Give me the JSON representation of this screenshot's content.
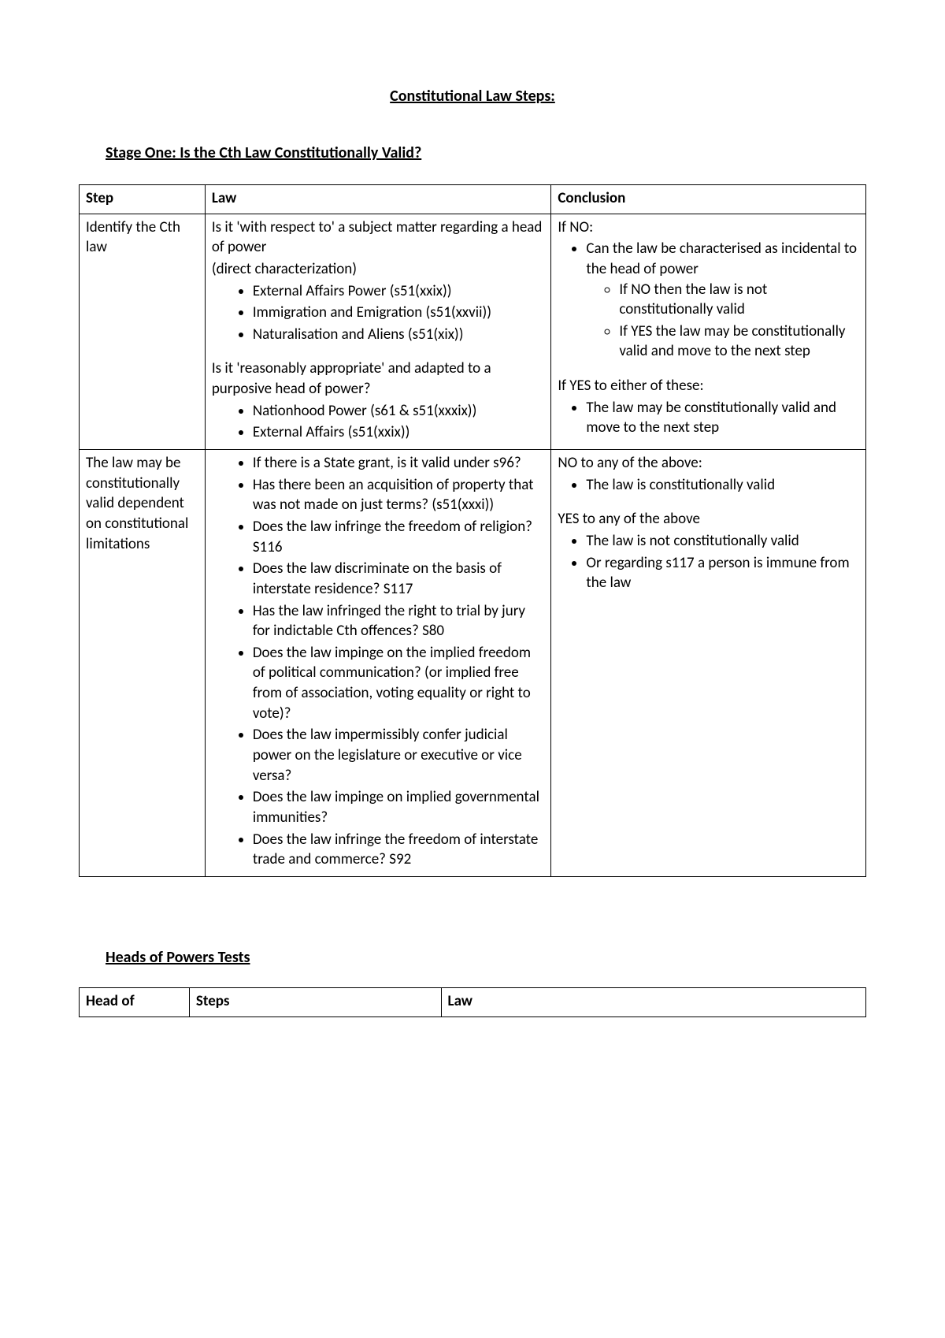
{
  "title": "Constitutional Law Steps:",
  "stage_one_title": "Stage One: Is the Cth Law Constitutionally Valid?",
  "table1": {
    "headers": {
      "step": "Step",
      "law": "Law",
      "conclusion": "Conclusion"
    },
    "row1": {
      "step": "Identify the Cth law",
      "law_p1": "Is it 'with respect to' a subject matter regarding a head of power",
      "law_p1b": "(direct characterization)",
      "law_b1": "External Affairs Power (s51(xxix))",
      "law_b2": "Immigration and Emigration (s51(xxvii))",
      "law_b3": "Naturalisation and Aliens (s51(xix))",
      "law_p2": "Is it 'reasonably appropriate' and adapted to a purposive head of power?",
      "law_b4": "Nationhood Power (s61 & s51(xxxix))",
      "law_b5": "External Affairs (s51(xxix))",
      "conc_p1": "If NO:",
      "conc_b1": "Can the law be characterised as incidental to the head of power",
      "conc_sb1": "If NO then the law is not constitutionally valid",
      "conc_sb2": "If YES the law may be constitutionally valid and move to the next step",
      "conc_p2": "If YES to either of these:",
      "conc_b2": "The law may be constitutionally valid and move to the next step"
    },
    "row2": {
      "step": "The law may be constitutionally valid dependent on constitutional limitations",
      "law_b1": "If there is a State grant, is it valid under s96?",
      "law_b2": "Has there been an acquisition of property that was not made on just terms? (s51(xxxi))",
      "law_b3": "Does the law infringe the freedom of religion? S116",
      "law_b4": "Does the law discriminate on the basis of interstate residence? S117",
      "law_b5": "Has the law infringed the right to trial by jury for indictable Cth offences? S80",
      "law_b6": "Does the law impinge on the implied freedom of political communication? (or implied free from of association, voting equality or right to vote)?",
      "law_b7": "Does the law impermissibly confer judicial power on the legislature or executive or vice versa?",
      "law_b8": "Does the law impinge on implied governmental immunities?",
      "law_b9": "Does the law infringe the freedom of interstate trade and commerce? S92",
      "conc_p1": "NO to any of the above:",
      "conc_b1": "The law is constitutionally valid",
      "conc_p2": "YES to any of the above",
      "conc_b2": "The law is not constitutionally valid",
      "conc_b3": "Or regarding s117 a person is immune from the law"
    }
  },
  "heads_title": "Heads of Powers Tests",
  "table2": {
    "headers": {
      "head": "Head of",
      "steps": "Steps",
      "law": "Law"
    }
  }
}
